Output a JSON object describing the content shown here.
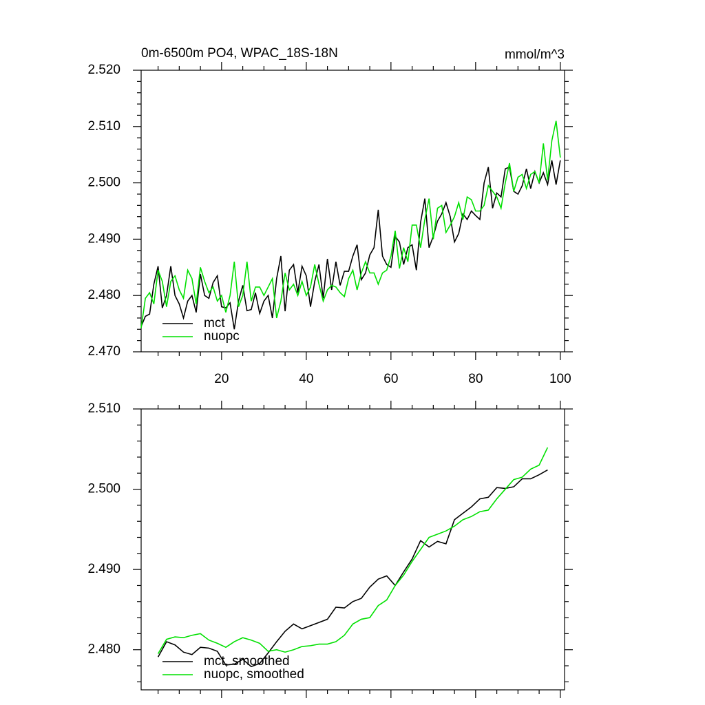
{
  "chart_data": [
    {
      "type": "line",
      "title": "0m-6500m PO4, WPAC_18S-18N",
      "units_label": "mmol/m^3",
      "x": [
        1,
        2,
        3,
        4,
        5,
        6,
        7,
        8,
        9,
        10,
        11,
        12,
        13,
        14,
        15,
        16,
        17,
        18,
        19,
        20,
        21,
        22,
        23,
        24,
        25,
        26,
        27,
        28,
        29,
        30,
        31,
        32,
        33,
        34,
        35,
        36,
        37,
        38,
        39,
        40,
        41,
        42,
        43,
        44,
        45,
        46,
        47,
        48,
        49,
        50,
        51,
        52,
        53,
        54,
        55,
        56,
        57,
        58,
        59,
        60,
        61,
        62,
        63,
        64,
        65,
        66,
        67,
        68,
        69,
        70,
        71,
        72,
        73,
        74,
        75,
        76,
        77,
        78,
        79,
        80,
        81,
        82,
        83,
        84,
        85,
        86,
        87,
        88,
        89,
        90,
        91,
        92,
        93,
        94,
        95,
        96,
        97,
        98,
        99,
        100
      ],
      "series": [
        {
          "name": "mct",
          "color": "#000000",
          "values": [
            2.4745,
            2.4763,
            2.4767,
            2.482,
            2.4852,
            2.4778,
            2.48,
            2.4852,
            2.48,
            2.4785,
            2.476,
            2.479,
            2.48,
            2.477,
            2.4838,
            2.48,
            2.4795,
            2.4823,
            2.4835,
            2.478,
            2.4778,
            2.4787,
            2.474,
            2.479,
            2.4818,
            2.4773,
            2.4775,
            2.4805,
            2.4768,
            2.479,
            2.48,
            2.476,
            2.483,
            2.487,
            2.4772,
            2.4845,
            2.4855,
            2.4805,
            2.4852,
            2.4835,
            2.478,
            2.4825,
            2.4855,
            2.4795,
            2.4865,
            2.481,
            2.486,
            2.4818,
            2.4843,
            2.4843,
            2.487,
            2.489,
            2.4828,
            2.484,
            2.4872,
            2.4885,
            2.4952,
            2.487,
            2.4855,
            2.485,
            2.4905,
            2.4895,
            2.4855,
            2.4885,
            2.489,
            2.4845,
            2.493,
            2.4972,
            2.4885,
            2.4905,
            2.4932,
            2.4945,
            2.4965,
            2.494,
            2.4895,
            2.491,
            2.4945,
            2.4935,
            2.495,
            2.4942,
            2.4935,
            2.5,
            2.5028,
            2.4955,
            2.4982,
            2.4975,
            2.5025,
            2.5028,
            2.4985,
            2.498,
            2.4995,
            2.5025,
            2.499,
            2.502,
            2.5,
            2.5018,
            2.4997,
            2.504,
            2.4997,
            2.504
          ]
        },
        {
          "name": "nuopc",
          "color": "#00e000",
          "values": [
            2.4742,
            2.4795,
            2.4805,
            2.4785,
            2.4845,
            2.4825,
            2.478,
            2.4825,
            2.4835,
            2.481,
            2.4795,
            2.4845,
            2.483,
            2.4785,
            2.485,
            2.4825,
            2.4805,
            2.4815,
            2.479,
            2.48,
            2.477,
            2.48,
            2.486,
            2.478,
            2.48,
            2.486,
            2.479,
            2.4815,
            2.4815,
            2.48,
            2.4815,
            2.483,
            2.476,
            2.479,
            2.484,
            2.481,
            2.482,
            2.48,
            2.4825,
            2.48,
            2.4815,
            2.4855,
            2.482,
            2.479,
            2.481,
            2.4818,
            2.4815,
            2.4805,
            2.4798,
            2.483,
            2.4845,
            2.481,
            2.484,
            2.486,
            2.484,
            2.484,
            2.482,
            2.484,
            2.4845,
            2.487,
            2.4915,
            2.4848,
            2.4885,
            2.486,
            2.4925,
            2.4925,
            2.4885,
            2.4935,
            2.4972,
            2.49,
            2.4955,
            2.496,
            2.4912,
            2.4925,
            2.494,
            2.4965,
            2.4935,
            2.4975,
            2.497,
            2.495,
            2.495,
            2.496,
            2.4995,
            2.4985,
            2.4975,
            2.4955,
            2.5,
            2.5035,
            2.4985,
            2.501,
            2.5015,
            2.499,
            2.5015,
            2.502,
            2.5,
            2.507,
            2.5005,
            2.5075,
            2.511,
            2.5045
          ]
        }
      ],
      "xlim": [
        1,
        101
      ],
      "xticks": [
        20,
        40,
        60,
        80,
        100
      ],
      "ylim": [
        2.47,
        2.52
      ],
      "yticks": [
        {
          "value": 2.47,
          "label": "2.470"
        },
        {
          "value": 2.48,
          "label": "2.480"
        },
        {
          "value": 2.49,
          "label": "2.490"
        },
        {
          "value": 2.5,
          "label": "2.500"
        },
        {
          "value": 2.51,
          "label": "2.510"
        },
        {
          "value": 2.52,
          "label": "2.520"
        }
      ],
      "legend": "lower left"
    },
    {
      "type": "line",
      "x": [
        5,
        7,
        9,
        11,
        13,
        15,
        17,
        19,
        21,
        23,
        25,
        27,
        29,
        31,
        33,
        35,
        37,
        39,
        41,
        43,
        45,
        47,
        49,
        51,
        53,
        55,
        57,
        59,
        61,
        63,
        65,
        67,
        69,
        71,
        73,
        75,
        77,
        79,
        81,
        83,
        85,
        87,
        89,
        91,
        93,
        95,
        97
      ],
      "series": [
        {
          "name": "mct, smoothed",
          "color": "#000000",
          "values": [
            2.4791,
            2.481,
            2.4806,
            2.4797,
            2.4794,
            2.4803,
            2.4802,
            2.4798,
            2.4781,
            2.4782,
            2.4788,
            2.4779,
            2.4783,
            2.4796,
            2.481,
            2.4823,
            2.4832,
            2.4826,
            2.483,
            2.4834,
            2.4838,
            2.4853,
            2.4852,
            2.486,
            2.4864,
            2.4878,
            2.4888,
            2.4892,
            2.488,
            2.4897,
            2.4913,
            2.4936,
            2.4928,
            2.4935,
            2.4932,
            2.4962,
            2.497,
            2.4978,
            2.4988,
            2.499,
            2.5002,
            2.5001,
            2.5003,
            2.5013,
            2.5013,
            2.5018,
            2.5024
          ]
        },
        {
          "name": "nuopc, smoothed",
          "color": "#00e000",
          "values": [
            2.4795,
            2.4813,
            2.4816,
            2.4815,
            2.4818,
            2.482,
            2.4812,
            2.4808,
            2.4803,
            2.481,
            2.4815,
            2.4812,
            2.4808,
            2.4798,
            2.48,
            2.4797,
            2.48,
            2.4804,
            2.4805,
            2.4807,
            2.4807,
            2.481,
            2.4818,
            2.4832,
            2.4838,
            2.484,
            2.4855,
            2.4862,
            2.488,
            2.4893,
            2.491,
            2.4925,
            2.494,
            2.4944,
            2.4948,
            2.4954,
            2.4962,
            2.4966,
            2.4972,
            2.4974,
            2.4988,
            2.5,
            2.5012,
            2.5015,
            2.5025,
            2.503,
            2.5052
          ]
        }
      ],
      "xlim": [
        1,
        101
      ],
      "xticks": [
        20,
        40,
        60,
        80,
        100
      ],
      "ylim": [
        2.475,
        2.51
      ],
      "yticks": [
        {
          "value": 2.48,
          "label": "2.480"
        },
        {
          "value": 2.49,
          "label": "2.490"
        },
        {
          "value": 2.5,
          "label": "2.500"
        },
        {
          "value": 2.51,
          "label": "2.510"
        }
      ],
      "legend": "lower left"
    }
  ]
}
